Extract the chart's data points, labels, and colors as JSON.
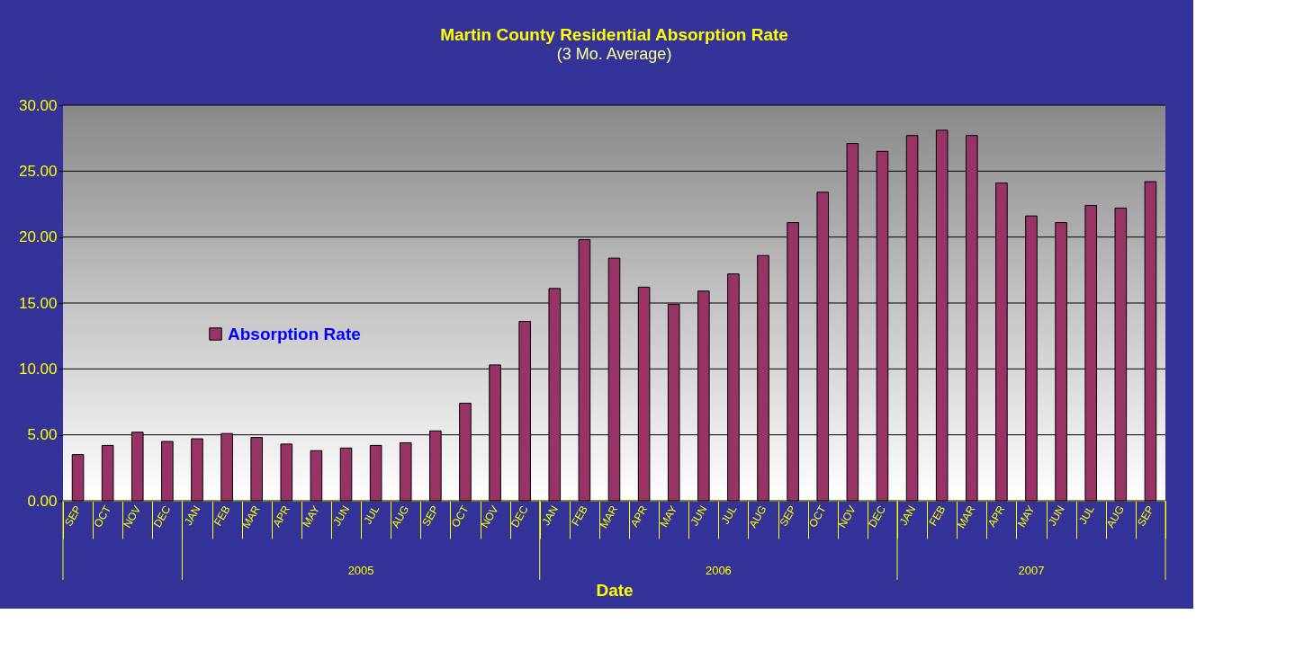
{
  "chart_data": {
    "type": "bar",
    "title": "Martin County Residential Absorption Rate",
    "subtitle": "(3 Mo. Average)",
    "xlabel": "Date",
    "categories": [
      "SEP",
      "OCT",
      "NOV",
      "DEC",
      "JAN",
      "FEB",
      "MAR",
      "APR",
      "MAY",
      "JUN",
      "JUL",
      "AUG",
      "SEP",
      "OCT",
      "NOV",
      "DEC",
      "JAN",
      "FEB",
      "MAR",
      "APR",
      "MAY",
      "JUN",
      "JUL",
      "AUG",
      "SEP",
      "OCT",
      "NOV",
      "DEC",
      "JAN",
      "FEB",
      "MAR",
      "APR",
      "MAY",
      "JUN",
      "JUL",
      "AUG",
      "SEP"
    ],
    "series": [
      {
        "name": "Absorption Rate",
        "color": "#993366",
        "values": [
          3.5,
          4.2,
          5.2,
          4.5,
          4.7,
          5.1,
          4.8,
          4.3,
          3.8,
          4.0,
          4.2,
          4.4,
          5.3,
          7.4,
          10.3,
          13.6,
          16.1,
          19.8,
          18.4,
          16.2,
          14.9,
          15.9,
          17.2,
          18.6,
          21.1,
          23.4,
          27.1,
          26.5,
          27.7,
          28.1,
          27.7,
          24.1,
          21.6,
          21.1,
          22.4,
          22.2,
          24.2
        ]
      }
    ],
    "ylim": [
      0,
      30
    ],
    "yticks": [
      {
        "value": 0,
        "label": "0.00"
      },
      {
        "value": 5,
        "label": "5.00"
      },
      {
        "value": 10,
        "label": "10.00"
      },
      {
        "value": 15,
        "label": "15.00"
      },
      {
        "value": 20,
        "label": "20.00"
      },
      {
        "value": 25,
        "label": "25.00"
      },
      {
        "value": 30,
        "label": "30.00"
      }
    ],
    "grid": "y",
    "legend": "left",
    "annotations": [
      "2005",
      "2006",
      "2007"
    ]
  }
}
